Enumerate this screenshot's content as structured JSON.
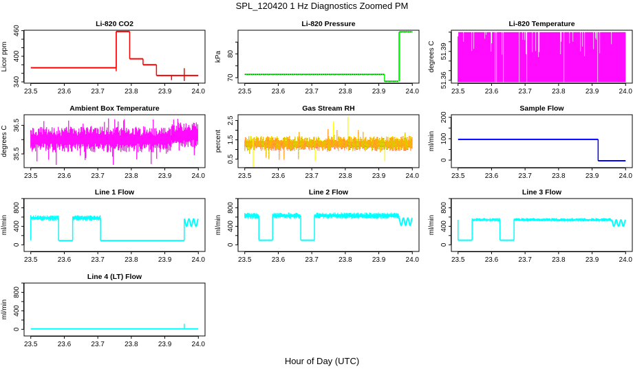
{
  "title": "SPL_120420  1 Hz Diagnostics Zoomed PM",
  "xlabel": "Hour of Day (UTC)",
  "chart_data": [
    {
      "type": "line",
      "title": "Li-820 CO2",
      "ylabel": "Licor ppm",
      "color": "#ff0000",
      "xlim": [
        23.48,
        24.02
      ],
      "xticks": [
        "23.5",
        "23.6",
        "23.7",
        "23.8",
        "23.9",
        "24.0"
      ],
      "ylim": [
        337,
        461
      ],
      "yticks": [
        340,
        360,
        380,
        400,
        420,
        440,
        460
      ],
      "ylabels": [
        "340",
        "400",
        "460"
      ],
      "segments": [
        [
          23.5,
          23.755,
          373,
          373
        ],
        [
          23.755,
          23.795,
          458,
          458
        ],
        [
          23.795,
          23.835,
          394,
          394
        ],
        [
          23.835,
          23.875,
          380,
          380
        ],
        [
          23.875,
          24.0,
          355,
          355
        ]
      ],
      "spikes": [
        [
          23.755,
          365,
          458
        ],
        [
          23.92,
          344,
          356
        ],
        [
          23.958,
          342,
          372
        ]
      ]
    },
    {
      "type": "line",
      "title": "Li-820 Pressure",
      "ylabel": "kPa",
      "color": "#00ff00",
      "overlay_color": "#000000",
      "xlim": [
        23.48,
        24.02
      ],
      "xticks": [
        "23.5",
        "23.6",
        "23.7",
        "23.8",
        "23.9",
        "24.0"
      ],
      "ylim": [
        67.7,
        90
      ],
      "yticks": [
        70,
        75,
        80,
        85
      ],
      "ylabels": [
        "70",
        "80"
      ],
      "segments": [
        [
          23.5,
          23.917,
          71.4,
          71.4
        ],
        [
          23.917,
          23.958,
          68.5,
          68.5
        ],
        [
          23.962,
          24.0,
          89.3,
          89.3
        ]
      ],
      "spikes": [
        [
          23.96,
          68.5,
          89.3
        ]
      ]
    },
    {
      "type": "line",
      "title": "Li-820 Temperature",
      "ylabel": "degrees C",
      "color": "#ff00ff",
      "xlim": [
        23.48,
        24.02
      ],
      "xticks": [
        "23.5",
        "23.6",
        "23.7",
        "23.8",
        "23.9",
        "24.0"
      ],
      "ylim": [
        51.357,
        51.412
      ],
      "yticks": [
        51.36,
        51.37,
        51.38,
        51.39,
        51.4,
        51.41
      ],
      "ylabels": [
        "51.36",
        "51.39"
      ],
      "segments": [
        [
          23.5,
          24.0,
          51.358,
          51.41
        ]
      ],
      "toggle": true
    },
    {
      "type": "line",
      "title": "Ambient Box Temperature",
      "ylabel": "degrees C",
      "color": "#ff00ff",
      "xlim": [
        23.48,
        24.02
      ],
      "xticks": [
        "23.5",
        "23.6",
        "23.7",
        "23.8",
        "23.9",
        "24.0"
      ],
      "ylim": [
        35.02,
        36.87
      ],
      "yticks": [
        35.5,
        36.0,
        36.5
      ],
      "ylabels": [
        "35.5",
        "36.5"
      ],
      "segments": [
        [
          23.5,
          23.92,
          35.55,
          36.45
        ],
        [
          23.92,
          24.0,
          35.7,
          36.6
        ]
      ],
      "extremes": [
        35.1,
        36.75
      ]
    },
    {
      "type": "line",
      "title": "Gas Stream RH",
      "ylabel": "percent",
      "color": "#ffff00",
      "overlay_color": "#ff0000",
      "xlim": [
        23.48,
        24.02
      ],
      "xticks": [
        "23.5",
        "23.6",
        "23.7",
        "23.8",
        "23.9",
        "24.0"
      ],
      "ylim": [
        0.06,
        2.8
      ],
      "yticks": [
        0.5,
        1.0,
        1.5,
        2.0,
        2.5
      ],
      "ylabels": [
        "0.5",
        "1.5",
        "2.5"
      ],
      "segments": [
        [
          23.5,
          24.0,
          0.95,
          1.7
        ]
      ],
      "extremes": [
        0.4,
        2.1
      ],
      "spikes": [
        [
          23.525,
          0.1,
          1.6
        ],
        [
          23.765,
          1.5,
          2.45
        ],
        [
          23.808,
          1.5,
          2.7
        ],
        [
          23.71,
          0.4,
          1.0
        ],
        [
          23.918,
          0.4,
          1.0
        ]
      ]
    },
    {
      "type": "line",
      "title": "Sample Flow",
      "ylabel": "ml/min",
      "color": "#0000ff",
      "xlim": [
        23.48,
        24.02
      ],
      "xticks": [
        "23.5",
        "23.6",
        "23.7",
        "23.8",
        "23.9",
        "24.0"
      ],
      "ylim": [
        -35,
        212
      ],
      "yticks": [
        0,
        50,
        100,
        150,
        200
      ],
      "ylabels": [
        "0",
        "100",
        "200"
      ],
      "segments": [
        [
          23.5,
          23.918,
          97,
          97
        ],
        [
          23.918,
          24.0,
          -3,
          -3
        ]
      ]
    },
    {
      "type": "line",
      "title": "Line 1 Flow",
      "ylabel": "ml/min",
      "color": "#00ffff",
      "xlim": [
        23.48,
        24.02
      ],
      "xticks": [
        "23.5",
        "23.6",
        "23.7",
        "23.8",
        "23.9",
        "24.0"
      ],
      "ylim": [
        -144,
        1000
      ],
      "yticks": [
        0,
        200,
        400,
        600,
        800,
        1000
      ],
      "ylabels": [
        "0",
        "400",
        "800"
      ],
      "segments": [
        [
          23.5,
          23.583,
          520,
          640
        ],
        [
          23.583,
          23.625,
          90,
          90
        ],
        [
          23.625,
          23.708,
          520,
          640
        ],
        [
          23.708,
          23.958,
          90,
          90
        ]
      ],
      "oscillation": [
        23.958,
        24.0,
        400,
        560
      ],
      "spikes": [
        [
          23.5,
          90,
          640
        ]
      ]
    },
    {
      "type": "line",
      "title": "Line 2 Flow",
      "ylabel": "ml/min",
      "color": "#00ffff",
      "xlim": [
        23.48,
        24.02
      ],
      "xticks": [
        "23.5",
        "23.6",
        "23.7",
        "23.8",
        "23.9",
        "24.0"
      ],
      "ylim": [
        -144,
        1000
      ],
      "yticks": [
        0,
        200,
        400,
        600,
        800,
        1000
      ],
      "ylabels": [
        "0",
        "400",
        "800"
      ],
      "segments": [
        [
          23.5,
          23.542,
          560,
          700
        ],
        [
          23.542,
          23.583,
          100,
          100
        ],
        [
          23.583,
          23.667,
          560,
          700
        ],
        [
          23.667,
          23.708,
          100,
          100
        ],
        [
          23.708,
          23.96,
          560,
          700
        ]
      ],
      "oscillation": [
        23.96,
        24.0,
        420,
        580
      ]
    },
    {
      "type": "line",
      "title": "Line 3 Flow",
      "ylabel": "ml/min",
      "color": "#00ffff",
      "xlim": [
        23.48,
        24.02
      ],
      "xticks": [
        "23.5",
        "23.6",
        "23.7",
        "23.8",
        "23.9",
        "24.0"
      ],
      "ylim": [
        -144,
        1000
      ],
      "yticks": [
        0,
        200,
        400,
        600,
        800,
        1000
      ],
      "ylabels": [
        "0",
        "400",
        "800"
      ],
      "segments": [
        [
          23.5,
          23.542,
          100,
          100
        ],
        [
          23.542,
          23.625,
          500,
          580
        ],
        [
          23.625,
          23.667,
          100,
          100
        ],
        [
          23.667,
          23.958,
          500,
          580
        ]
      ],
      "oscillation": [
        23.958,
        24.0,
        400,
        540
      ],
      "spikes": [
        [
          23.5,
          100,
          540
        ]
      ]
    },
    {
      "type": "line",
      "title": "Line 4 (LT) Flow",
      "ylabel": "ml/min",
      "color": "#00ffff",
      "xlim": [
        23.48,
        24.02
      ],
      "xticks": [
        "23.5",
        "23.6",
        "23.7",
        "23.8",
        "23.9",
        "24.0"
      ],
      "ylim": [
        -144,
        1000
      ],
      "yticks": [
        0,
        200,
        400,
        600,
        800,
        1000
      ],
      "ylabels": [
        "0",
        "400",
        "800"
      ],
      "segments": [
        [
          23.5,
          24.0,
          10,
          10
        ]
      ],
      "spikes": [
        [
          23.958,
          10,
          120
        ]
      ]
    }
  ]
}
